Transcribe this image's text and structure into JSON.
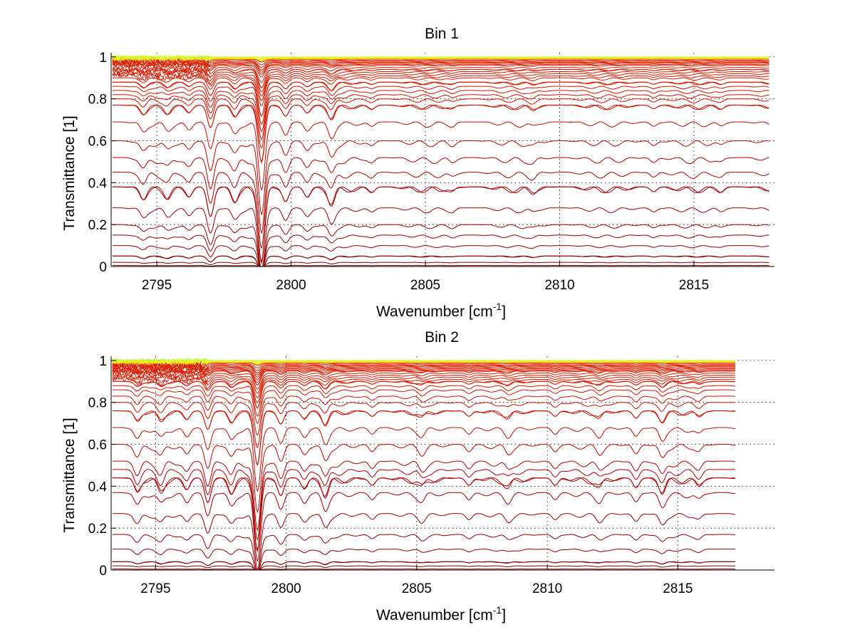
{
  "chart_data": [
    {
      "type": "line",
      "title": "Bin 1",
      "xlabel": "Wavenumber [cm",
      "xlabel_sup": "-1",
      "xlabel_suffix": "]",
      "ylabel": "Transmittance [1]",
      "xlim": [
        2793.3,
        2818.0
      ],
      "ylim": [
        0,
        1.02
      ],
      "x_end": 2817.8,
      "xticks": [
        2795,
        2800,
        2805,
        2810,
        2815
      ],
      "xtick_labels": [
        "2795",
        "2800",
        "2805",
        "2810",
        "2815"
      ],
      "yticks": [
        0,
        0.2,
        0.4,
        0.6,
        0.8,
        1
      ],
      "ytick_labels": [
        "0",
        "0.2",
        "0.4",
        "0.6",
        "0.8",
        "1"
      ],
      "grid": true,
      "line_count": 44,
      "baseline_levels": [
        0.0,
        0.005,
        0.02,
        0.05,
        0.1,
        0.15,
        0.2,
        0.28,
        0.38,
        0.45,
        0.52,
        0.6,
        0.69,
        0.77,
        0.8,
        0.82,
        0.84,
        0.86,
        0.88,
        0.9,
        0.91,
        0.92,
        0.93,
        0.94,
        0.95,
        0.96,
        0.965,
        0.97,
        0.975,
        0.98,
        0.985,
        0.99,
        0.992,
        0.994,
        0.996,
        0.998,
        1.0
      ],
      "absorption_lines": [
        {
          "x": 2794.5,
          "depth": 0.08
        },
        {
          "x": 2795.4,
          "depth": 0.06
        },
        {
          "x": 2796.2,
          "depth": 0.07
        },
        {
          "x": 2797.0,
          "depth": 0.25
        },
        {
          "x": 2797.9,
          "depth": 0.1
        },
        {
          "x": 2798.9,
          "depth": 0.6
        },
        {
          "x": 2799.8,
          "depth": 0.12
        },
        {
          "x": 2800.6,
          "depth": 0.08
        },
        {
          "x": 2801.5,
          "depth": 0.12
        },
        {
          "x": 2803.0,
          "depth": 0.04
        },
        {
          "x": 2806.0,
          "depth": 0.03
        },
        {
          "x": 2809.0,
          "depth": 0.03
        },
        {
          "x": 2813.5,
          "depth": 0.04
        },
        {
          "x": 2816.0,
          "depth": 0.03
        }
      ],
      "color_scale": [
        "#00007f",
        "#0000ff",
        "#007fff",
        "#00ffff",
        "#7fff7f",
        "#ffff00",
        "#ff7f00",
        "#ff0000",
        "#b00000",
        "#7f0000"
      ]
    },
    {
      "type": "line",
      "title": "Bin 2",
      "xlabel": "Wavenumber [cm",
      "xlabel_sup": "-1",
      "xlabel_suffix": "]",
      "ylabel": "Transmittance [1]",
      "xlim": [
        2793.3,
        2818.7
      ],
      "ylim": [
        0,
        1.02
      ],
      "x_end": 2817.2,
      "xticks": [
        2795,
        2800,
        2805,
        2810,
        2815
      ],
      "xtick_labels": [
        "2795",
        "2800",
        "2805",
        "2810",
        "2815"
      ],
      "yticks": [
        0,
        0.2,
        0.4,
        0.6,
        0.8,
        1
      ],
      "ytick_labels": [
        "0",
        "0.2",
        "0.4",
        "0.6",
        "0.8",
        "1"
      ],
      "grid": true,
      "line_count": 44,
      "baseline_levels": [
        0.0,
        0.005,
        0.02,
        0.04,
        0.1,
        0.17,
        0.27,
        0.37,
        0.44,
        0.48,
        0.52,
        0.6,
        0.68,
        0.76,
        0.8,
        0.83,
        0.86,
        0.88,
        0.9,
        0.91,
        0.92,
        0.93,
        0.94,
        0.95,
        0.955,
        0.96,
        0.965,
        0.97,
        0.975,
        0.98,
        0.985,
        0.99,
        0.992,
        0.994,
        0.996,
        0.998,
        1.0
      ],
      "absorption_lines": [
        {
          "x": 2794.3,
          "depth": 0.1
        },
        {
          "x": 2795.2,
          "depth": 0.08
        },
        {
          "x": 2796.2,
          "depth": 0.08
        },
        {
          "x": 2797.0,
          "depth": 0.2
        },
        {
          "x": 2797.9,
          "depth": 0.1
        },
        {
          "x": 2798.9,
          "depth": 0.55
        },
        {
          "x": 2799.8,
          "depth": 0.14
        },
        {
          "x": 2800.7,
          "depth": 0.08
        },
        {
          "x": 2801.5,
          "depth": 0.12
        },
        {
          "x": 2803.3,
          "depth": 0.06
        },
        {
          "x": 2805.2,
          "depth": 0.05
        },
        {
          "x": 2807.0,
          "depth": 0.06
        },
        {
          "x": 2808.5,
          "depth": 0.05
        },
        {
          "x": 2810.3,
          "depth": 0.06
        },
        {
          "x": 2812.0,
          "depth": 0.05
        },
        {
          "x": 2813.4,
          "depth": 0.08
        },
        {
          "x": 2814.4,
          "depth": 0.1
        },
        {
          "x": 2815.8,
          "depth": 0.05
        }
      ],
      "color_scale": [
        "#00007f",
        "#0000ff",
        "#007fff",
        "#00ffff",
        "#7fff7f",
        "#ffff00",
        "#ff7f00",
        "#ff0000",
        "#b00000",
        "#7f0000"
      ]
    }
  ]
}
